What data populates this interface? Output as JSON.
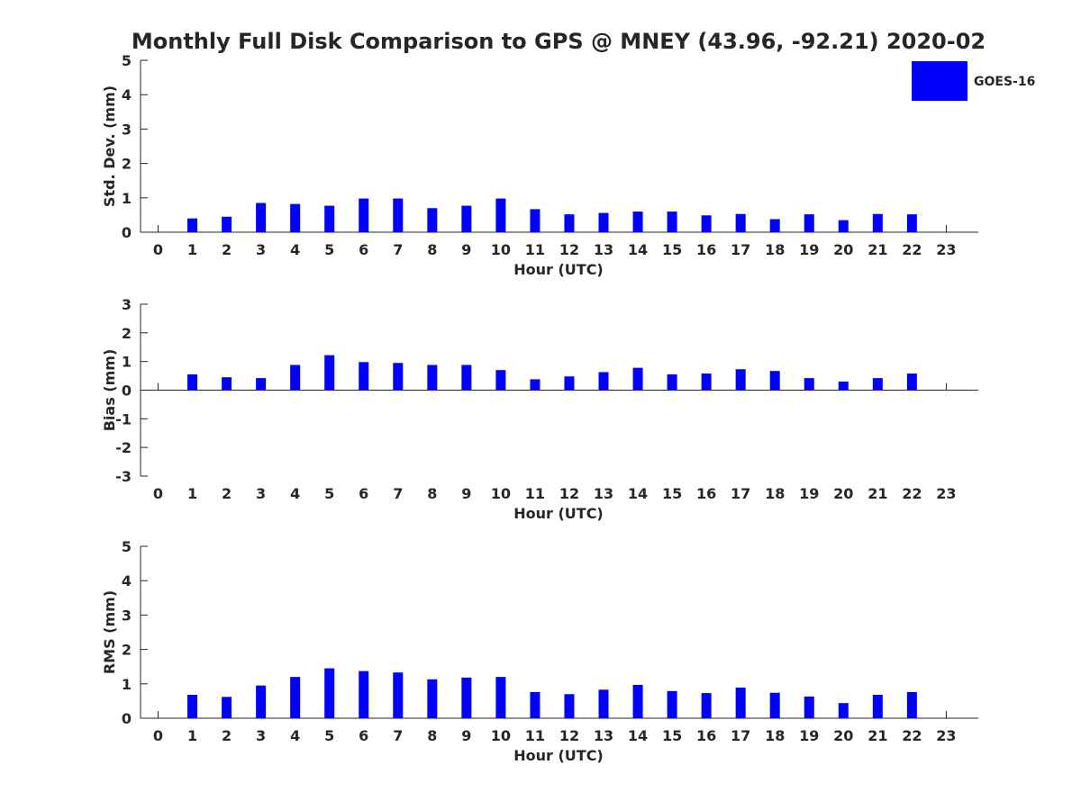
{
  "title": "Monthly Full Disk Comparison to GPS @ MNEY (43.96, -92.21) 2020-02",
  "legend": {
    "label": "GOES-16",
    "color": "#0000ff"
  },
  "chart_data": [
    {
      "type": "bar",
      "ylabel": "Std. Dev. (mm)",
      "xlabel": "Hour (UTC)",
      "ylim": [
        0,
        5
      ],
      "yticks": [
        0,
        1,
        2,
        3,
        4,
        5
      ],
      "ytick_labels": [
        "0",
        "1",
        "2",
        "3",
        "4",
        "5"
      ],
      "categories": [
        "0",
        "1",
        "2",
        "3",
        "4",
        "5",
        "6",
        "7",
        "8",
        "9",
        "10",
        "11",
        "12",
        "13",
        "14",
        "15",
        "16",
        "17",
        "18",
        "19",
        "20",
        "21",
        "22",
        "23"
      ],
      "series": [
        {
          "name": "GOES-16",
          "values": [
            null,
            0.4,
            0.45,
            0.85,
            0.82,
            0.77,
            0.98,
            0.98,
            0.7,
            0.77,
            0.98,
            0.67,
            0.52,
            0.56,
            0.6,
            0.6,
            0.49,
            0.53,
            0.38,
            0.52,
            0.35,
            0.53,
            0.52,
            null
          ]
        }
      ]
    },
    {
      "type": "bar",
      "ylabel": "Bias (mm)",
      "xlabel": "Hour (UTC)",
      "ylim": [
        -3,
        3
      ],
      "yticks": [
        -3,
        -2,
        -1,
        0,
        1,
        2,
        3
      ],
      "ytick_labels": [
        "-3",
        "-2",
        "-1",
        "0",
        "1",
        "2",
        "3"
      ],
      "categories": [
        "0",
        "1",
        "2",
        "3",
        "4",
        "5",
        "6",
        "7",
        "8",
        "9",
        "10",
        "11",
        "12",
        "13",
        "14",
        "15",
        "16",
        "17",
        "18",
        "19",
        "20",
        "21",
        "22",
        "23"
      ],
      "series": [
        {
          "name": "GOES-16",
          "values": [
            null,
            0.55,
            0.45,
            0.42,
            0.88,
            1.22,
            0.98,
            0.95,
            0.88,
            0.88,
            0.7,
            0.38,
            0.48,
            0.63,
            0.78,
            0.55,
            0.58,
            0.73,
            0.67,
            0.42,
            0.3,
            0.42,
            0.58,
            null
          ]
        }
      ]
    },
    {
      "type": "bar",
      "ylabel": "RMS (mm)",
      "xlabel": "Hour (UTC)",
      "ylim": [
        0,
        5
      ],
      "yticks": [
        0,
        1,
        2,
        3,
        4,
        5
      ],
      "ytick_labels": [
        "0",
        "1",
        "2",
        "3",
        "4",
        "5"
      ],
      "categories": [
        "0",
        "1",
        "2",
        "3",
        "4",
        "5",
        "6",
        "7",
        "8",
        "9",
        "10",
        "11",
        "12",
        "13",
        "14",
        "15",
        "16",
        "17",
        "18",
        "19",
        "20",
        "21",
        "22",
        "23"
      ],
      "series": [
        {
          "name": "GOES-16",
          "values": [
            null,
            0.68,
            0.62,
            0.95,
            1.2,
            1.45,
            1.37,
            1.33,
            1.13,
            1.18,
            1.2,
            0.76,
            0.7,
            0.83,
            0.97,
            0.79,
            0.73,
            0.89,
            0.74,
            0.63,
            0.44,
            0.68,
            0.76,
            null
          ]
        }
      ]
    }
  ]
}
